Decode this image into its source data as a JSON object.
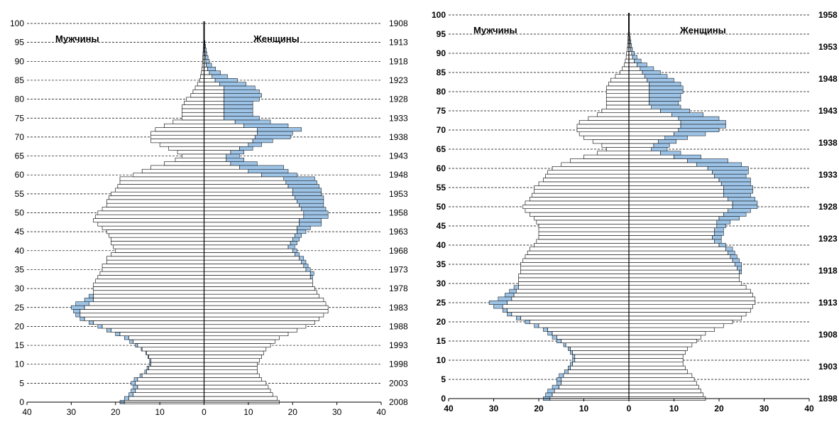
{
  "chart_data": [
    {
      "type": "bar",
      "orientation": "horizontal",
      "subtype": "population-pyramid",
      "age_axis": {
        "ticks": [
          0,
          5,
          10,
          15,
          20,
          25,
          30,
          35,
          40,
          45,
          50,
          55,
          60,
          65,
          70,
          75,
          80,
          85,
          90,
          95,
          100
        ],
        "range": [
          0,
          100
        ]
      },
      "value_axis": {
        "ticks": [
          40,
          30,
          20,
          10,
          0,
          10,
          20,
          30,
          40
        ],
        "range": [
          -40,
          40
        ]
      },
      "year_axis": {
        "ticks": [
          "1908",
          "1913",
          "1918",
          "1923",
          "1928",
          "1933",
          "1938",
          "1943",
          "1948",
          "1953",
          "1958",
          "1963",
          "1968",
          "1973",
          "1978",
          "1983",
          "1988",
          "1993",
          "1998",
          "2003",
          "2008"
        ]
      },
      "side_labels": {
        "left": "Мужчины",
        "right": "Женщины"
      },
      "grid": "dashed horizontal every 5 years",
      "bold_labels": false,
      "ages": [
        0,
        1,
        2,
        3,
        4,
        5,
        6,
        7,
        8,
        9,
        10,
        11,
        12,
        13,
        14,
        15,
        16,
        17,
        18,
        19,
        20,
        21,
        22,
        23,
        24,
        25,
        26,
        27,
        28,
        29,
        30,
        31,
        32,
        33,
        34,
        35,
        36,
        37,
        38,
        39,
        40,
        41,
        42,
        43,
        44,
        45,
        46,
        47,
        48,
        49,
        50,
        51,
        52,
        53,
        54,
        55,
        56,
        57,
        58,
        59,
        60,
        61,
        62,
        63,
        64,
        65,
        66,
        67,
        68,
        69,
        70,
        71,
        72,
        73,
        74,
        75,
        76,
        77,
        78,
        79,
        80,
        81,
        82,
        83,
        84,
        85,
        86,
        87,
        88,
        89,
        90,
        91,
        92,
        93,
        94,
        95,
        96,
        97,
        98,
        99,
        100
      ],
      "male_base": [
        18,
        17,
        16,
        15.5,
        15,
        15.5,
        15,
        14,
        13,
        12.5,
        12,
        12,
        12.5,
        13,
        14,
        15,
        16,
        17,
        19,
        21,
        23,
        25,
        27,
        28,
        28,
        27,
        26,
        25,
        25,
        25,
        25,
        25,
        24.5,
        24,
        23.5,
        23,
        23,
        22,
        22,
        21,
        20,
        20.5,
        21,
        21,
        21.5,
        22,
        23,
        24,
        25,
        24.5,
        24,
        23,
        22,
        22,
        21.5,
        21,
        20,
        19.5,
        19,
        19,
        16,
        14,
        12,
        9,
        6.5,
        5,
        6,
        8,
        10,
        12,
        12,
        12,
        11,
        9,
        7,
        5,
        5,
        5,
        5,
        4.5,
        4,
        3,
        2.5,
        2,
        1.5,
        1,
        0.8,
        0.6,
        0.5,
        0.4,
        0.3,
        0.3,
        0.25,
        0.2,
        0.15,
        0.1,
        0.1,
        0.1,
        0.1,
        0.1,
        0.1
      ],
      "male_excess": [
        1,
        1,
        1,
        1,
        1,
        1,
        0.8,
        0.5,
        0.4,
        0.4,
        0.3,
        0.3,
        0.2,
        0.2,
        0.2,
        0.5,
        0.8,
        1,
        1,
        1,
        1,
        1,
        1,
        1,
        1.5,
        3,
        3,
        2,
        1,
        0,
        0,
        0,
        0,
        0,
        0,
        0,
        0,
        0,
        0,
        0,
        0,
        0,
        0,
        0,
        0,
        0,
        0,
        0,
        0,
        0,
        0,
        0,
        0,
        0,
        0,
        0,
        0,
        0,
        0,
        0,
        0,
        0,
        0,
        0,
        0,
        0,
        0,
        0,
        0,
        0,
        0,
        0,
        0,
        0,
        0,
        0,
        0,
        0,
        0,
        0,
        0,
        0,
        0,
        0,
        0,
        0,
        0,
        0,
        0,
        0,
        0,
        0,
        0,
        0,
        0,
        0,
        0,
        0,
        0,
        0,
        0
      ],
      "female_base": [
        17,
        16.5,
        15.5,
        15,
        14.5,
        14,
        13,
        12.5,
        12,
        12,
        12,
        12.5,
        13,
        13.5,
        14,
        15,
        16,
        17,
        19,
        21,
        23,
        25,
        26,
        27,
        28,
        28,
        27.5,
        27,
        26,
        25.5,
        25,
        24.5,
        24.5,
        24,
        24,
        23,
        22.5,
        22,
        21.5,
        20.5,
        20,
        19,
        19.5,
        20,
        20.5,
        21,
        21,
        21.5,
        21.5,
        22.5,
        22.5,
        22,
        21.5,
        21,
        20.5,
        20,
        20,
        19,
        18.5,
        18,
        13,
        10,
        8,
        6,
        5,
        5,
        6,
        8,
        10,
        11,
        11.5,
        12,
        12,
        9,
        7,
        4.5,
        4.5,
        4.5,
        4.5,
        4.5,
        4.5,
        4.5,
        4.5,
        4.5,
        3.5,
        2.5,
        1.8,
        1.2,
        0.8,
        0.5,
        0.4,
        0.3,
        0.25,
        0.2,
        0.15,
        0.1,
        0.1,
        0.1,
        0.1,
        0.1,
        0.1
      ],
      "female_excess": [
        0,
        0,
        0,
        0,
        0,
        0,
        0,
        0,
        0,
        0,
        0,
        0,
        0,
        0,
        0,
        0,
        0,
        0,
        0,
        0,
        0,
        0,
        0,
        0,
        0,
        0,
        0,
        0,
        0,
        0,
        0,
        0,
        0,
        0.5,
        0.8,
        1,
        1,
        1,
        1,
        1,
        1,
        1.5,
        1.5,
        1.5,
        1.5,
        2,
        3,
        5,
        5,
        5.5,
        5.5,
        5.5,
        5.5,
        6,
        6.5,
        6.5,
        6.5,
        7,
        7,
        7,
        8,
        9,
        10,
        6,
        4,
        3,
        3,
        3,
        3,
        4.5,
        8,
        8,
        10,
        10,
        8,
        8,
        6.5,
        6.5,
        6.5,
        6.5,
        8,
        8.5,
        8,
        7,
        6,
        5,
        3.5,
        2.5,
        1.8,
        1.2,
        0.8,
        0.6,
        0.4,
        0.3,
        0.2,
        0.1,
        0,
        0,
        0,
        0,
        0
      ]
    },
    {
      "type": "bar",
      "orientation": "horizontal",
      "subtype": "population-pyramid",
      "age_axis": {
        "ticks": [
          0,
          5,
          10,
          15,
          20,
          25,
          30,
          35,
          40,
          45,
          50,
          55,
          60,
          65,
          70,
          75,
          80,
          85,
          90,
          95,
          100
        ],
        "range": [
          0,
          100
        ]
      },
      "value_axis": {
        "ticks": [
          40,
          30,
          20,
          10,
          0,
          10,
          20,
          30,
          40
        ],
        "range": [
          -40,
          40
        ]
      },
      "year_axis": {
        "ticks": [
          "1958",
          "1953",
          "1948",
          "1943",
          "1938",
          "1933",
          "1928",
          "1923",
          "1918",
          "1913",
          "1908",
          "1903",
          "1898"
        ]
      },
      "side_labels": {
        "left": "Мужчины",
        "right": "Женщины"
      },
      "grid": "dashed horizontal every 5 years",
      "bold_labels": true,
      "ages": [
        0,
        1,
        2,
        3,
        4,
        5,
        6,
        7,
        8,
        9,
        10,
        11,
        12,
        13,
        14,
        15,
        16,
        17,
        18,
        19,
        20,
        21,
        22,
        23,
        24,
        25,
        26,
        27,
        28,
        29,
        30,
        31,
        32,
        33,
        34,
        35,
        36,
        37,
        38,
        39,
        40,
        41,
        42,
        43,
        44,
        45,
        46,
        47,
        48,
        49,
        50,
        51,
        52,
        53,
        54,
        55,
        56,
        57,
        58,
        59,
        60,
        61,
        62,
        63,
        64,
        65,
        66,
        67,
        68,
        69,
        70,
        71,
        72,
        73,
        74,
        75,
        76,
        77,
        78,
        79,
        80,
        81,
        82,
        83,
        84,
        85,
        86,
        87,
        88,
        89,
        90,
        91,
        92,
        93,
        94,
        95,
        96,
        97,
        98,
        99,
        100
      ],
      "male_base": [
        17.5,
        17,
        16.5,
        15.5,
        15,
        15,
        14.5,
        13.5,
        13,
        12.5,
        12,
        12,
        12.5,
        13,
        14,
        15,
        16,
        17,
        18,
        20,
        22,
        24,
        26,
        27,
        28,
        27,
        26,
        25.5,
        25,
        24.5,
        24.5,
        24.5,
        24.5,
        24,
        24,
        24,
        23.5,
        23,
        22.5,
        22,
        21,
        20.5,
        20,
        20,
        20,
        20,
        20.5,
        21,
        22,
        23,
        23.5,
        23,
        22,
        21.5,
        21,
        21,
        20,
        19,
        18.5,
        18,
        17,
        15,
        13,
        10,
        7,
        5,
        6,
        8,
        10,
        11,
        11.5,
        11.5,
        11,
        9,
        7,
        6,
        5,
        5,
        5,
        5,
        5,
        5,
        4.5,
        4,
        3,
        2,
        1.5,
        1,
        0.8,
        0.6,
        0.5,
        0.4,
        0.3,
        0.25,
        0.2,
        0.15,
        0.1,
        0.1,
        0.1,
        0.1,
        0.1
      ],
      "male_excess": [
        1.5,
        1.5,
        1.5,
        1.5,
        1,
        1,
        1,
        0.8,
        0.5,
        0.5,
        0.5,
        0.5,
        0.5,
        0.5,
        0.5,
        1,
        1,
        1,
        1,
        1,
        1,
        1,
        1,
        1,
        2,
        4,
        3,
        2,
        1.5,
        1,
        0,
        0,
        0,
        0,
        0,
        0,
        0,
        0,
        0,
        0,
        0,
        0,
        0,
        0,
        0,
        0,
        0,
        0,
        0,
        0,
        0,
        0,
        0,
        0,
        0,
        0,
        0,
        0,
        0,
        0,
        0,
        0,
        0,
        0,
        0,
        0,
        0,
        0,
        0,
        0,
        0,
        0,
        0,
        0,
        0,
        0,
        0,
        0,
        0,
        0,
        0,
        0,
        0,
        0,
        0,
        0,
        0,
        0,
        0,
        0,
        0,
        0,
        0,
        0,
        0,
        0,
        0,
        0,
        0,
        0,
        0
      ],
      "female_base": [
        17,
        16.5,
        16,
        15.5,
        15,
        14.5,
        14,
        13,
        12.5,
        12,
        12,
        12,
        12.5,
        13,
        14,
        15,
        16,
        17,
        19,
        21,
        23,
        25,
        26,
        27,
        27.5,
        28,
        28,
        27.5,
        27,
        26,
        25,
        24.5,
        24.5,
        24.5,
        24,
        23.5,
        23,
        22.5,
        22,
        21.5,
        20,
        19,
        18.5,
        19,
        19,
        19.5,
        19.5,
        20,
        21,
        22,
        23,
        23,
        22,
        21,
        21,
        21,
        20.5,
        20,
        19,
        18.5,
        17.5,
        15,
        13,
        10,
        7,
        5,
        5.5,
        6.5,
        8,
        10,
        11,
        11.5,
        11.5,
        11,
        9.5,
        7,
        5,
        4.5,
        4.5,
        4.5,
        4.5,
        4.5,
        4.5,
        4,
        3.5,
        3,
        2.5,
        1.8,
        1.2,
        0.8,
        0.6,
        0.4,
        0.3,
        0.25,
        0.2,
        0.15,
        0.1,
        0.1,
        0.1,
        0.1,
        0.1
      ],
      "female_excess": [
        0,
        0,
        0,
        0,
        0,
        0,
        0,
        0,
        0,
        0,
        0,
        0,
        0,
        0,
        0,
        0,
        0,
        0,
        0,
        0,
        0,
        0,
        0,
        0,
        0,
        0,
        0,
        0,
        0,
        0,
        0,
        0,
        0,
        0.5,
        1,
        1.5,
        1.5,
        1.5,
        1.5,
        1.5,
        1.5,
        1.5,
        2,
        2,
        2,
        2,
        3,
        4.5,
        5,
        5,
        5.5,
        5.5,
        6,
        6,
        6.5,
        6.5,
        6.5,
        7,
        7,
        8,
        9,
        10,
        9,
        6,
        4.5,
        3.5,
        3.5,
        4,
        5,
        7,
        9,
        10,
        10,
        9,
        7,
        6.5,
        6.5,
        6.5,
        7,
        7,
        7.5,
        7.5,
        7,
        6,
        5,
        4,
        3,
        2.2,
        1.5,
        1,
        0.6,
        0.4,
        0.3,
        0.2,
        0.1,
        0,
        0,
        0,
        0,
        0,
        0
      ]
    }
  ]
}
